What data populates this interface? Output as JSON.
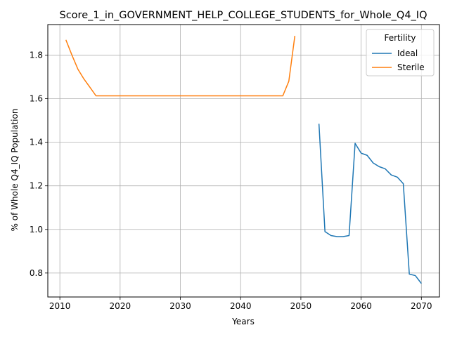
{
  "chart_data": {
    "type": "line",
    "title": "Score_1_in_GOVERNMENT_HELP_COLLEGE_STUDENTS_for_Whole_Q4_IQ",
    "xlabel": "Years",
    "ylabel": "% of Whole Q4_IQ Population",
    "xlim": [
      2008,
      2073
    ],
    "ylim": [
      0.69,
      1.94
    ],
    "xticks": [
      2010,
      2020,
      2030,
      2040,
      2050,
      2060,
      2070
    ],
    "xtick_labels": [
      "2010",
      "2020",
      "2030",
      "2040",
      "2050",
      "2060",
      "2070"
    ],
    "yticks": [
      0.8,
      1.0,
      1.2,
      1.4,
      1.6,
      1.8
    ],
    "ytick_labels": [
      "0.8",
      "1.0",
      "1.2",
      "1.4",
      "1.6",
      "1.8"
    ],
    "grid": true,
    "legend": {
      "title": "Fertility",
      "position": "top-right"
    },
    "series": [
      {
        "name": "Ideal",
        "color": "#1f77b4",
        "x": [
          2053,
          2054,
          2055,
          2056,
          2057,
          2058,
          2059,
          2060,
          2061,
          2062,
          2063,
          2064,
          2065,
          2066,
          2067,
          2068,
          2069,
          2070
        ],
        "y": [
          1.485,
          0.99,
          0.972,
          0.967,
          0.967,
          0.972,
          1.395,
          1.35,
          1.34,
          1.305,
          1.288,
          1.278,
          1.25,
          1.24,
          1.21,
          0.795,
          0.788,
          0.752
        ]
      },
      {
        "name": "Sterile",
        "color": "#ff7f0e",
        "x": [
          2011,
          2012,
          2013,
          2014,
          2015,
          2016,
          2017,
          2018,
          2019,
          2020,
          2021,
          2022,
          2023,
          2024,
          2025,
          2026,
          2027,
          2028,
          2029,
          2030,
          2031,
          2032,
          2033,
          2034,
          2035,
          2036,
          2037,
          2038,
          2039,
          2040,
          2041,
          2042,
          2043,
          2044,
          2045,
          2046,
          2047,
          2048,
          2049
        ],
        "y": [
          1.87,
          1.8,
          1.735,
          1.69,
          1.652,
          1.613,
          1.613,
          1.613,
          1.613,
          1.613,
          1.613,
          1.613,
          1.613,
          1.613,
          1.613,
          1.613,
          1.613,
          1.613,
          1.613,
          1.613,
          1.613,
          1.613,
          1.613,
          1.613,
          1.613,
          1.613,
          1.613,
          1.613,
          1.613,
          1.613,
          1.613,
          1.613,
          1.613,
          1.613,
          1.613,
          1.613,
          1.613,
          1.68,
          1.888
        ]
      }
    ]
  }
}
